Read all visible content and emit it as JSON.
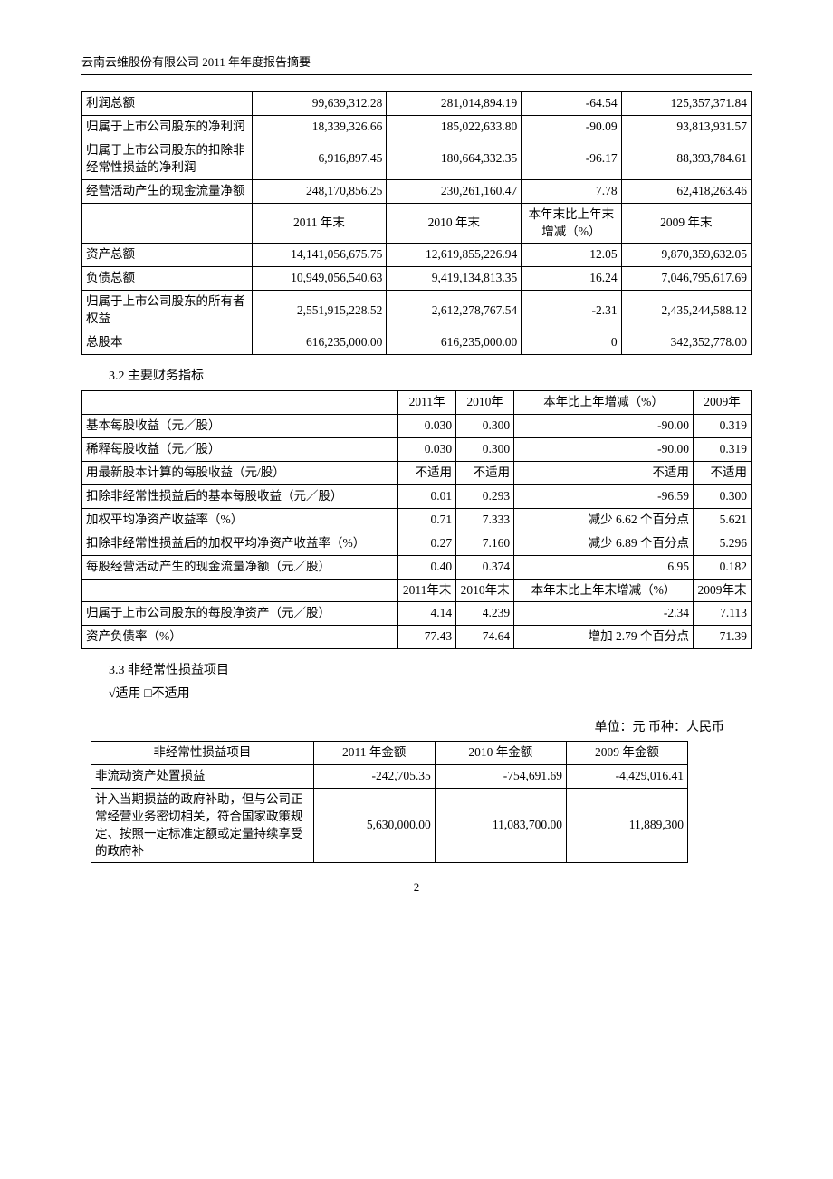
{
  "header": "云南云维股份有限公司  2011 年年度报告摘要",
  "page_number": "2",
  "table1": {
    "rows": [
      [
        "利润总额",
        "99,639,312.28",
        "281,014,894.19",
        "-64.54",
        "125,357,371.84"
      ],
      [
        "归属于上市公司股东的净利润",
        "18,339,326.66",
        "185,022,633.80",
        "-90.09",
        "93,813,931.57"
      ],
      [
        "归属于上市公司股东的扣除非经常性损益的净利润",
        "6,916,897.45",
        "180,664,332.35",
        "-96.17",
        "88,393,784.61"
      ],
      [
        "经营活动产生的现金流量净额",
        "248,170,856.25",
        "230,261,160.47",
        "7.78",
        "62,418,263.46"
      ]
    ],
    "mid_header": [
      "",
      "2011 年末",
      "2010 年末",
      "本年末比上年末增减（%）",
      "2009 年末"
    ],
    "rows2": [
      [
        "资产总额",
        "14,141,056,675.75",
        "12,619,855,226.94",
        "12.05",
        "9,870,359,632.05"
      ],
      [
        "负债总额",
        "10,949,056,540.63",
        "9,419,134,813.35",
        "16.24",
        "7,046,795,617.69"
      ],
      [
        "归属于上市公司股东的所有者权益",
        "2,551,915,228.52",
        "2,612,278,767.54",
        "-2.31",
        "2,435,244,588.12"
      ],
      [
        "总股本",
        "616,235,000.00",
        "616,235,000.00",
        "0",
        "342,352,778.00"
      ]
    ]
  },
  "section32_title": "3.2 主要财务指标",
  "table2": {
    "header": [
      "",
      "2011年",
      "2010年",
      "本年比上年增减（%）",
      "2009年"
    ],
    "rows": [
      [
        "基本每股收益（元／股）",
        "0.030",
        "0.300",
        "-90.00",
        "0.319"
      ],
      [
        "稀释每股收益（元／股）",
        "0.030",
        "0.300",
        "-90.00",
        "0.319"
      ],
      [
        "用最新股本计算的每股收益（元/股）",
        "不适用",
        "不适用",
        "不适用",
        "不适用"
      ],
      [
        "扣除非经常性损益后的基本每股收益（元／股）",
        "0.01",
        "0.293",
        "-96.59",
        "0.300"
      ],
      [
        "加权平均净资产收益率（%）",
        "0.71",
        "7.333",
        "减少 6.62 个百分点",
        "5.621"
      ],
      [
        "扣除非经常性损益后的加权平均净资产收益率（%）",
        "0.27",
        "7.160",
        "减少 6.89 个百分点",
        "5.296"
      ],
      [
        "每股经营活动产生的现金流量净额（元／股）",
        "0.40",
        "0.374",
        "6.95",
        "0.182"
      ]
    ],
    "mid_header": [
      "",
      "2011年末",
      "2010年末",
      "本年末比上年末增减（%）",
      "2009年末"
    ],
    "rows2": [
      [
        "归属于上市公司股东的每股净资产（元／股）",
        "4.14",
        "4.239",
        "-2.34",
        "7.113"
      ],
      [
        "资产负债率（%）",
        "77.43",
        "74.64",
        "增加 2.79 个百分点",
        "71.39"
      ]
    ]
  },
  "section33_title": "3.3 非经常性损益项目",
  "applicable_line": "√适用  □不适用",
  "unit_line": "单位：元  币种：人民币",
  "table3": {
    "header": [
      "非经常性损益项目",
      "2011 年金额",
      "2010 年金额",
      "2009 年金额"
    ],
    "rows": [
      [
        "非流动资产处置损益",
        "-242,705.35",
        "-754,691.69",
        "-4,429,016.41"
      ],
      [
        "计入当期损益的政府补助，但与公司正常经营业务密切相关，符合国家政策规定、按照一定标准定额或定量持续享受的政府补",
        "5,630,000.00",
        "11,083,700.00",
        "11,889,300"
      ]
    ]
  },
  "col_widths": {
    "t1_c0": "170px",
    "t1_c1": "135px",
    "t1_c2": "135px",
    "t1_c3": "100px",
    "t1_c4": "130px",
    "t2_c0": "300px",
    "t2_c1": "55px",
    "t2_c2": "55px",
    "t2_c3": "170px",
    "t2_c4": "55px",
    "t3_c0": "220px",
    "t3_c1": "120px",
    "t3_c2": "130px",
    "t3_c3": "120px"
  }
}
